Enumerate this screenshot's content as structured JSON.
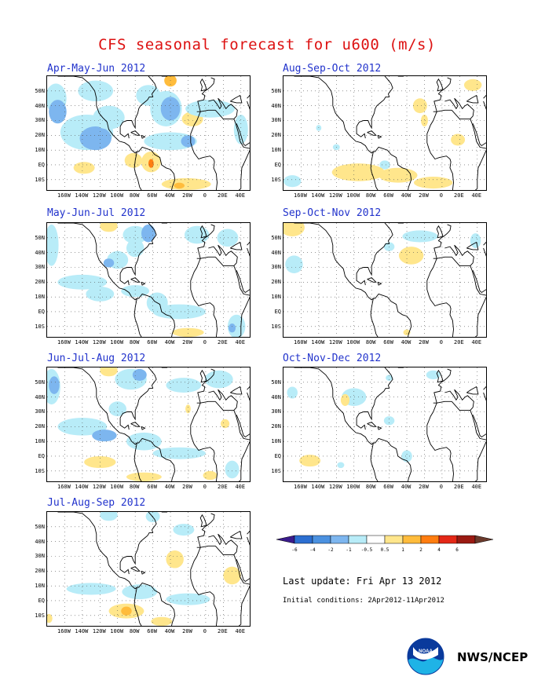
{
  "title": "CFS seasonal forecast for u600 (m/s)",
  "panels": [
    {
      "label": "Apr-May-Jun 2012",
      "blobs": [
        {
          "lon": -170,
          "lat": 45,
          "rx": 12,
          "ry": 10,
          "lev": -1
        },
        {
          "lon": -168,
          "lat": 36,
          "rx": 10,
          "ry": 8,
          "lev": -2
        },
        {
          "lon": -135,
          "lat": 22,
          "rx": 30,
          "ry": 12,
          "lev": -1
        },
        {
          "lon": -125,
          "lat": 18,
          "rx": 18,
          "ry": 8,
          "lev": -2
        },
        {
          "lon": -110,
          "lat": 32,
          "rx": 18,
          "ry": 8,
          "lev": -1
        },
        {
          "lon": -125,
          "lat": 50,
          "rx": 20,
          "ry": 7,
          "lev": -1
        },
        {
          "lon": -65,
          "lat": 47,
          "rx": 14,
          "ry": 7,
          "lev": -1
        },
        {
          "lon": -45,
          "lat": 38,
          "rx": 18,
          "ry": 12,
          "lev": -1
        },
        {
          "lon": -40,
          "lat": 38,
          "rx": 11,
          "ry": 8,
          "lev": -2
        },
        {
          "lon": -15,
          "lat": 31,
          "rx": 12,
          "ry": 5,
          "lev": 1
        },
        {
          "lon": -40,
          "lat": 16,
          "rx": 30,
          "ry": 6,
          "lev": -1
        },
        {
          "lon": -20,
          "lat": 16,
          "rx": 8,
          "ry": 4,
          "lev": -2
        },
        {
          "lon": 5,
          "lat": 38,
          "rx": 28,
          "ry": 6,
          "lev": -1
        },
        {
          "lon": 40,
          "lat": 24,
          "rx": 8,
          "ry": 10,
          "lev": -1
        },
        {
          "lon": -138,
          "lat": -2,
          "rx": 12,
          "ry": 4,
          "lev": 1
        },
        {
          "lon": -82,
          "lat": 3,
          "rx": 10,
          "ry": 5,
          "lev": 1
        },
        {
          "lon": -62,
          "lat": 2,
          "rx": 11,
          "ry": 7,
          "lev": 1
        },
        {
          "lon": -62,
          "lat": 1,
          "rx": 3,
          "ry": 3,
          "lev": 3
        },
        {
          "lon": -40,
          "lat": 57,
          "rx": 7,
          "ry": 4,
          "lev": 2
        },
        {
          "lon": -22,
          "lat": -13,
          "rx": 28,
          "ry": 4,
          "lev": 1
        },
        {
          "lon": -30,
          "lat": -14,
          "rx": 6,
          "ry": 2,
          "lev": 2
        }
      ]
    },
    {
      "label": "Aug-Sep-Oct 2012",
      "blobs": [
        {
          "lon": -25,
          "lat": 40,
          "rx": 8,
          "ry": 5,
          "lev": 1
        },
        {
          "lon": -20,
          "lat": 30,
          "rx": 4,
          "ry": 4,
          "lev": 1
        },
        {
          "lon": 18,
          "lat": 17,
          "rx": 8,
          "ry": 4,
          "lev": 1
        },
        {
          "lon": -140,
          "lat": 25,
          "rx": 3,
          "ry": 2,
          "lev": -1
        },
        {
          "lon": -120,
          "lat": 12,
          "rx": 4,
          "ry": 2,
          "lev": -1
        },
        {
          "lon": -65,
          "lat": 0,
          "rx": 6,
          "ry": 3,
          "lev": -1
        },
        {
          "lon": -95,
          "lat": -5,
          "rx": 30,
          "ry": 6,
          "lev": 1
        },
        {
          "lon": -50,
          "lat": -7,
          "rx": 22,
          "ry": 5,
          "lev": 1
        },
        {
          "lon": -10,
          "lat": -12,
          "rx": 22,
          "ry": 4,
          "lev": 1
        },
        {
          "lon": -170,
          "lat": -11,
          "rx": 10,
          "ry": 4,
          "lev": -1
        },
        {
          "lon": 35,
          "lat": 54,
          "rx": 10,
          "ry": 4,
          "lev": 1
        }
      ]
    },
    {
      "label": "May-Jun-Jul 2012",
      "blobs": [
        {
          "lon": -175,
          "lat": 45,
          "rx": 8,
          "ry": 14,
          "lev": -1
        },
        {
          "lon": -110,
          "lat": 58,
          "rx": 10,
          "ry": 4,
          "lev": 1
        },
        {
          "lon": -80,
          "lat": 52,
          "rx": 14,
          "ry": 6,
          "lev": -1
        },
        {
          "lon": -80,
          "lat": 43,
          "rx": 10,
          "ry": 6,
          "lev": -1
        },
        {
          "lon": -65,
          "lat": 53,
          "rx": 8,
          "ry": 6,
          "lev": -2
        },
        {
          "lon": -100,
          "lat": 35,
          "rx": 12,
          "ry": 6,
          "lev": -1
        },
        {
          "lon": -110,
          "lat": 33,
          "rx": 6,
          "ry": 3,
          "lev": -2
        },
        {
          "lon": -140,
          "lat": 20,
          "rx": 28,
          "ry": 5,
          "lev": -1
        },
        {
          "lon": -120,
          "lat": 12,
          "rx": 16,
          "ry": 5,
          "lev": -1
        },
        {
          "lon": -80,
          "lat": 14,
          "rx": 16,
          "ry": 4,
          "lev": -1
        },
        {
          "lon": -55,
          "lat": 6,
          "rx": 12,
          "ry": 7,
          "lev": -1
        },
        {
          "lon": -30,
          "lat": 0,
          "rx": 30,
          "ry": 5,
          "lev": -1
        },
        {
          "lon": -10,
          "lat": 52,
          "rx": 14,
          "ry": 6,
          "lev": -1
        },
        {
          "lon": 25,
          "lat": 50,
          "rx": 12,
          "ry": 6,
          "lev": -1
        },
        {
          "lon": 35,
          "lat": -10,
          "rx": 10,
          "ry": 8,
          "lev": -1
        },
        {
          "lon": 30,
          "lat": -11,
          "rx": 4,
          "ry": 3,
          "lev": -2
        },
        {
          "lon": -20,
          "lat": -14,
          "rx": 18,
          "ry": 3,
          "lev": 1
        }
      ]
    },
    {
      "label": "Sep-Oct-Nov 2012",
      "blobs": [
        {
          "lon": -170,
          "lat": 57,
          "rx": 14,
          "ry": 6,
          "lev": 1
        },
        {
          "lon": -35,
          "lat": 38,
          "rx": 14,
          "ry": 6,
          "lev": 1
        },
        {
          "lon": -25,
          "lat": 51,
          "rx": 20,
          "ry": 4,
          "lev": -1
        },
        {
          "lon": -168,
          "lat": 32,
          "rx": 10,
          "ry": 6,
          "lev": -1
        },
        {
          "lon": -60,
          "lat": 44,
          "rx": 6,
          "ry": 3,
          "lev": -1
        },
        {
          "lon": 38,
          "lat": 48,
          "rx": 6,
          "ry": 5,
          "lev": -1
        },
        {
          "lon": -40,
          "lat": -14,
          "rx": 4,
          "ry": 2,
          "lev": 1
        }
      ]
    },
    {
      "label": "Jun-Jul-Aug 2012",
      "blobs": [
        {
          "lon": -175,
          "lat": 47,
          "rx": 10,
          "ry": 12,
          "lev": -1
        },
        {
          "lon": -172,
          "lat": 48,
          "rx": 6,
          "ry": 6,
          "lev": -2
        },
        {
          "lon": -110,
          "lat": 58,
          "rx": 10,
          "ry": 4,
          "lev": 1
        },
        {
          "lon": -85,
          "lat": 52,
          "rx": 18,
          "ry": 7,
          "lev": -1
        },
        {
          "lon": -75,
          "lat": 55,
          "rx": 8,
          "ry": 4,
          "lev": -2
        },
        {
          "lon": -100,
          "lat": 32,
          "rx": 10,
          "ry": 5,
          "lev": -1
        },
        {
          "lon": -140,
          "lat": 20,
          "rx": 28,
          "ry": 6,
          "lev": -1
        },
        {
          "lon": -115,
          "lat": 14,
          "rx": 14,
          "ry": 4,
          "lev": -2
        },
        {
          "lon": -70,
          "lat": 10,
          "rx": 20,
          "ry": 6,
          "lev": -1
        },
        {
          "lon": -30,
          "lat": 2,
          "rx": 30,
          "ry": 4,
          "lev": -1
        },
        {
          "lon": -120,
          "lat": -4,
          "rx": 18,
          "ry": 4,
          "lev": 1
        },
        {
          "lon": -70,
          "lat": -14,
          "rx": 20,
          "ry": 3,
          "lev": 1
        },
        {
          "lon": -25,
          "lat": 48,
          "rx": 20,
          "ry": 5,
          "lev": -1
        },
        {
          "lon": 15,
          "lat": 52,
          "rx": 16,
          "ry": 6,
          "lev": -1
        },
        {
          "lon": 30,
          "lat": -9,
          "rx": 8,
          "ry": 6,
          "lev": -1
        },
        {
          "lon": 5,
          "lat": -13,
          "rx": 8,
          "ry": 3,
          "lev": 1
        },
        {
          "lon": 22,
          "lat": 22,
          "rx": 5,
          "ry": 3,
          "lev": 1
        },
        {
          "lon": -20,
          "lat": 32,
          "rx": 3,
          "ry": 3,
          "lev": 1
        }
      ]
    },
    {
      "label": "Oct-Nov-Dec 2012",
      "blobs": [
        {
          "lon": -170,
          "lat": 43,
          "rx": 6,
          "ry": 4,
          "lev": -1
        },
        {
          "lon": -100,
          "lat": 40,
          "rx": 14,
          "ry": 6,
          "lev": -1
        },
        {
          "lon": -110,
          "lat": 38,
          "rx": 5,
          "ry": 4,
          "lev": 1
        },
        {
          "lon": -60,
          "lat": 24,
          "rx": 6,
          "ry": 3,
          "lev": -1
        },
        {
          "lon": -150,
          "lat": -3,
          "rx": 12,
          "ry": 4,
          "lev": 1
        },
        {
          "lon": -40,
          "lat": 0,
          "rx": 6,
          "ry": 4,
          "lev": -1
        },
        {
          "lon": -10,
          "lat": 55,
          "rx": 8,
          "ry": 3,
          "lev": -1
        },
        {
          "lon": -60,
          "lat": 53,
          "rx": 4,
          "ry": 2,
          "lev": -1
        },
        {
          "lon": -115,
          "lat": -6,
          "rx": 4,
          "ry": 2,
          "lev": -1
        }
      ]
    },
    {
      "label": "Jul-Aug-Sep 2012",
      "blobs": [
        {
          "lon": -110,
          "lat": 58,
          "rx": 10,
          "ry": 4,
          "lev": -1
        },
        {
          "lon": -60,
          "lat": 57,
          "rx": 8,
          "ry": 4,
          "lev": -1
        },
        {
          "lon": -25,
          "lat": 48,
          "rx": 12,
          "ry": 4,
          "lev": -1
        },
        {
          "lon": -35,
          "lat": 28,
          "rx": 10,
          "ry": 6,
          "lev": 1
        },
        {
          "lon": 30,
          "lat": 17,
          "rx": 10,
          "ry": 6,
          "lev": 1
        },
        {
          "lon": -130,
          "lat": 8,
          "rx": 28,
          "ry": 4,
          "lev": -1
        },
        {
          "lon": -75,
          "lat": 6,
          "rx": 20,
          "ry": 5,
          "lev": -1
        },
        {
          "lon": -20,
          "lat": 1,
          "rx": 25,
          "ry": 4,
          "lev": -1
        },
        {
          "lon": -90,
          "lat": -7,
          "rx": 20,
          "ry": 5,
          "lev": 1
        },
        {
          "lon": -90,
          "lat": -7,
          "rx": 6,
          "ry": 3,
          "lev": 2
        },
        {
          "lon": -50,
          "lat": -14,
          "rx": 12,
          "ry": 3,
          "lev": 1
        },
        {
          "lon": -178,
          "lat": -12,
          "rx": 4,
          "ry": 3,
          "lev": 1
        }
      ]
    }
  ],
  "lat_labels": [
    "50N",
    "40N",
    "30N",
    "20N",
    "10N",
    "EQ",
    "10S"
  ],
  "lon_labels": [
    "160W",
    "140W",
    "120W",
    "100W",
    "80W",
    "60W",
    "40W",
    "20W",
    "0",
    "20E",
    "40E"
  ],
  "colorbar": {
    "ticks": [
      "-6",
      "-4",
      "-2",
      "-1",
      "-0.5",
      "0.5",
      "1",
      "2",
      "4",
      "6"
    ],
    "colors": [
      "#3a1b8c",
      "#2c6fd1",
      "#4b91e0",
      "#7db6ef",
      "#b8ecf8",
      "#ffffff",
      "#ffe68c",
      "#ffbc3c",
      "#ff7d10",
      "#e42817",
      "#9a1a12",
      "#6b3a2c"
    ]
  },
  "last_update": "Last update: Fri Apr 13 2012",
  "initial_conditions": "Initial conditions: 2Apr2012-11Apr2012",
  "agency": "NWS/NCEP",
  "logo_text": "NOAA"
}
